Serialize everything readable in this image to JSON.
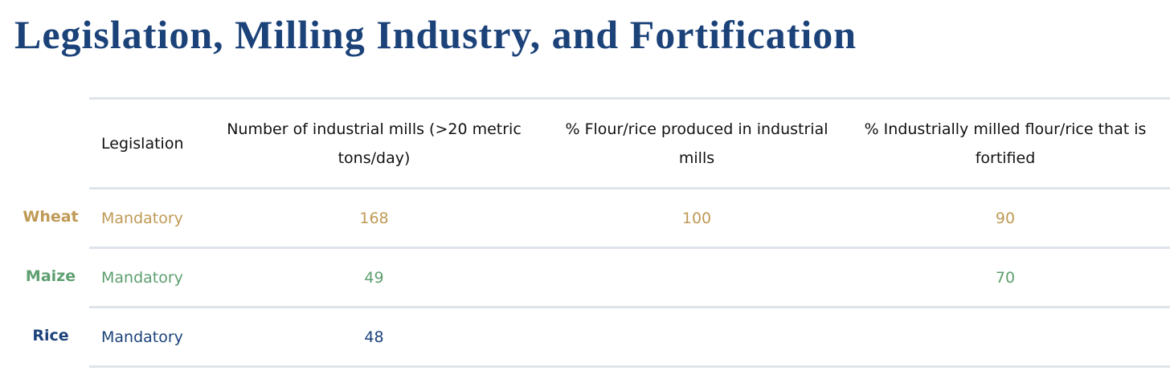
{
  "page_title": "Legislation, Milling Industry, and Fortification",
  "colors": {
    "title": "#1b4279",
    "wheat": "#bf9a55",
    "maize": "#5e9f70",
    "rice": "#1b4279",
    "divider": "#dfe3ea"
  },
  "table": {
    "headers": [
      "Legislation",
      "Number of industrial mills (>20 metric tons/day)",
      "% Flour/rice produced in industrial mills",
      "% Industrially milled flour/rice that is fortified"
    ],
    "rows": [
      {
        "label": "Wheat",
        "color": "#bf9a55",
        "legislation": "Mandatory",
        "mills": "168",
        "flour_pct": "100",
        "fortified_pct": "90"
      },
      {
        "label": "Maize",
        "color": "#5e9f70",
        "legislation": "Mandatory",
        "mills": "49",
        "flour_pct": "",
        "fortified_pct": "70"
      },
      {
        "label": "Rice",
        "color": "#1b4279",
        "legislation": "Mandatory",
        "mills": "48",
        "flour_pct": "",
        "fortified_pct": ""
      }
    ]
  }
}
